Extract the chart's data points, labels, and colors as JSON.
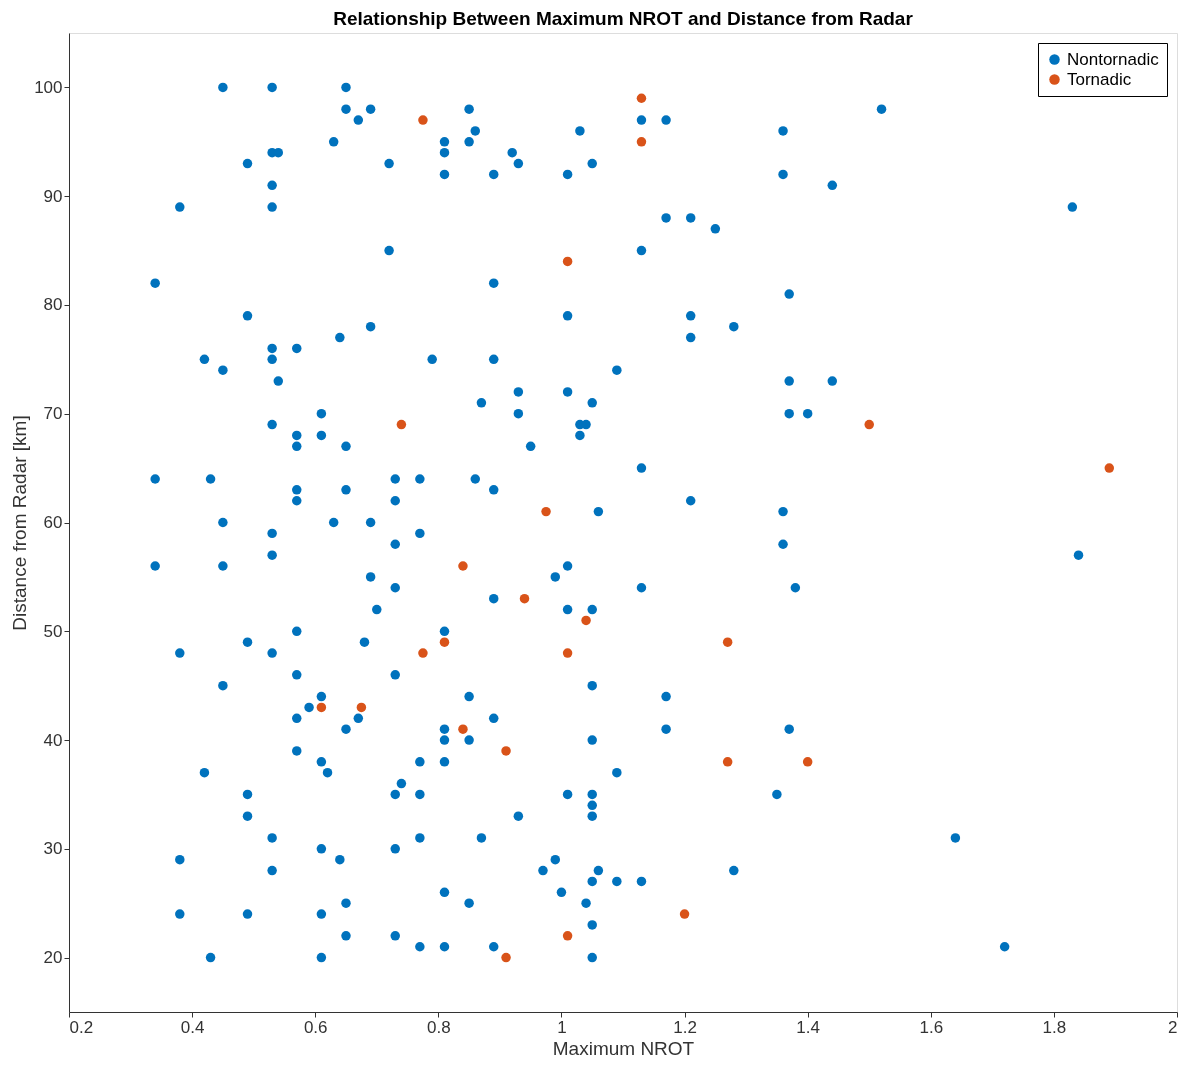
{
  "chart_data": {
    "type": "scatter",
    "title": "Relationship Between Maximum NROT and Distance from Radar",
    "xlabel": "Maximum NROT",
    "ylabel": "Distance from Radar [km]",
    "xlim": [
      0.2,
      2
    ],
    "xticks": [
      0.2,
      0.4,
      0.6,
      0.8,
      1,
      1.2,
      1.4,
      1.6,
      1.8,
      2
    ],
    "ylim": [
      15,
      105
    ],
    "yticks": [
      20,
      30,
      40,
      50,
      60,
      70,
      80,
      90,
      100
    ],
    "grid": false,
    "legend": "top right",
    "marker": "circle",
    "series": [
      {
        "name": "Nontornadic",
        "color": "#0072bd",
        "x": [
          0.45,
          0.53,
          0.65,
          0.65,
          0.69,
          0.85,
          1.52,
          0.67,
          1.13,
          1.17,
          0.86,
          1.03,
          1.36,
          0.63,
          0.81,
          0.85,
          0.53,
          0.54,
          0.81,
          0.92,
          0.49,
          0.72,
          0.93,
          1.05,
          0.81,
          0.89,
          1.01,
          1.36,
          0.53,
          1.44,
          0.38,
          0.53,
          1.83,
          1.17,
          1.21,
          1.25,
          0.72,
          1.13,
          0.34,
          0.89,
          1.37,
          0.49,
          1.01,
          1.21,
          0.69,
          1.28,
          0.64,
          1.21,
          0.53,
          0.57,
          0.42,
          0.53,
          0.79,
          0.89,
          0.45,
          1.09,
          0.54,
          1.37,
          1.44,
          0.93,
          1.01,
          0.87,
          1.05,
          0.61,
          0.93,
          1.37,
          1.4,
          0.53,
          1.03,
          1.04,
          0.57,
          0.61,
          1.03,
          0.57,
          0.65,
          0.95,
          1.13,
          0.34,
          0.43,
          0.73,
          0.77,
          0.86,
          0.57,
          0.65,
          0.89,
          0.57,
          0.73,
          1.21,
          1.06,
          1.36,
          0.45,
          0.63,
          0.69,
          0.53,
          0.77,
          0.73,
          1.36,
          0.53,
          1.84,
          0.34,
          0.45,
          1.01,
          0.69,
          0.99,
          0.73,
          1.13,
          1.38,
          0.89,
          0.7,
          1.01,
          1.05,
          0.81,
          0.57,
          0.49,
          0.68,
          0.38,
          0.53,
          0.57,
          0.73,
          0.45,
          1.05,
          0.61,
          0.85,
          1.17,
          0.59,
          0.57,
          0.67,
          0.89,
          0.65,
          0.81,
          1.17,
          1.37,
          0.81,
          0.85,
          1.05,
          0.57,
          0.61,
          0.77,
          0.81,
          0.42,
          0.62,
          1.09,
          0.74,
          0.49,
          0.73,
          0.77,
          1.01,
          1.05,
          1.35,
          1.05,
          0.49,
          0.93,
          1.05,
          0.53,
          0.77,
          0.87,
          1.64,
          0.61,
          0.73,
          0.38,
          0.64,
          0.99,
          0.53,
          0.97,
          1.06,
          1.28,
          1.05,
          1.09,
          1.13,
          0.81,
          1.0,
          0.65,
          0.85,
          1.04,
          0.38,
          0.49,
          0.61,
          1.05,
          0.65,
          0.73,
          null,
          0.77,
          0.81,
          0.89,
          1.72,
          0.43,
          0.61,
          1.05
        ],
        "values": [
          100,
          100,
          100,
          98,
          98,
          98,
          98,
          97,
          97,
          97,
          96,
          96,
          96,
          95,
          95,
          95,
          94,
          94,
          94,
          94,
          93,
          93,
          93,
          93,
          92,
          92,
          92,
          92,
          91,
          91,
          89,
          89,
          89,
          88,
          88,
          87,
          85,
          85,
          82,
          82,
          81,
          79,
          79,
          79,
          78,
          78,
          77,
          77,
          76,
          76,
          75,
          75,
          75,
          75,
          74,
          74,
          73,
          73,
          73,
          72,
          72,
          71,
          71,
          70,
          70,
          70,
          70,
          69,
          69,
          69,
          68,
          68,
          68,
          67,
          67,
          67,
          65,
          64,
          64,
          64,
          64,
          64,
          63,
          63,
          63,
          62,
          62,
          62,
          61,
          61,
          60,
          60,
          60,
          59,
          59,
          58,
          58,
          57,
          57,
          56,
          56,
          56,
          55,
          55,
          54,
          54,
          54,
          53,
          52,
          52,
          52,
          50,
          50,
          49,
          49,
          48,
          48,
          46,
          46,
          45,
          45,
          44,
          44,
          44,
          43,
          42,
          42,
          42,
          41,
          41,
          41,
          41,
          40,
          40,
          40,
          39,
          38,
          38,
          38,
          37,
          37,
          37,
          36,
          35,
          35,
          35,
          35,
          35,
          35,
          34,
          33,
          33,
          33,
          31,
          31,
          31,
          31,
          30,
          30,
          29,
          29,
          29,
          28,
          28,
          28,
          28,
          27,
          27,
          27,
          26,
          26,
          25,
          25,
          25,
          24,
          24,
          24,
          23,
          22,
          22,
          null,
          21,
          21,
          21,
          21,
          20,
          20,
          20
        ]
      },
      {
        "name": "Tornadic",
        "color": "#d95319",
        "x": [
          1.13,
          0.775,
          1.13,
          1.01,
          0.74,
          1.5,
          1.89,
          0.975,
          0.84,
          0.94,
          1.04,
          1.27,
          0.81,
          0.775,
          1.01,
          0.61,
          0.675,
          0.84,
          0.91,
          1.27,
          1.4,
          1.2,
          1.01,
          0.91
        ],
        "values": [
          99,
          97,
          95,
          84,
          69,
          69,
          65,
          61,
          56,
          53,
          51,
          49,
          49,
          48,
          48,
          43,
          43,
          41,
          39,
          38,
          38,
          24,
          22,
          20
        ]
      }
    ]
  }
}
